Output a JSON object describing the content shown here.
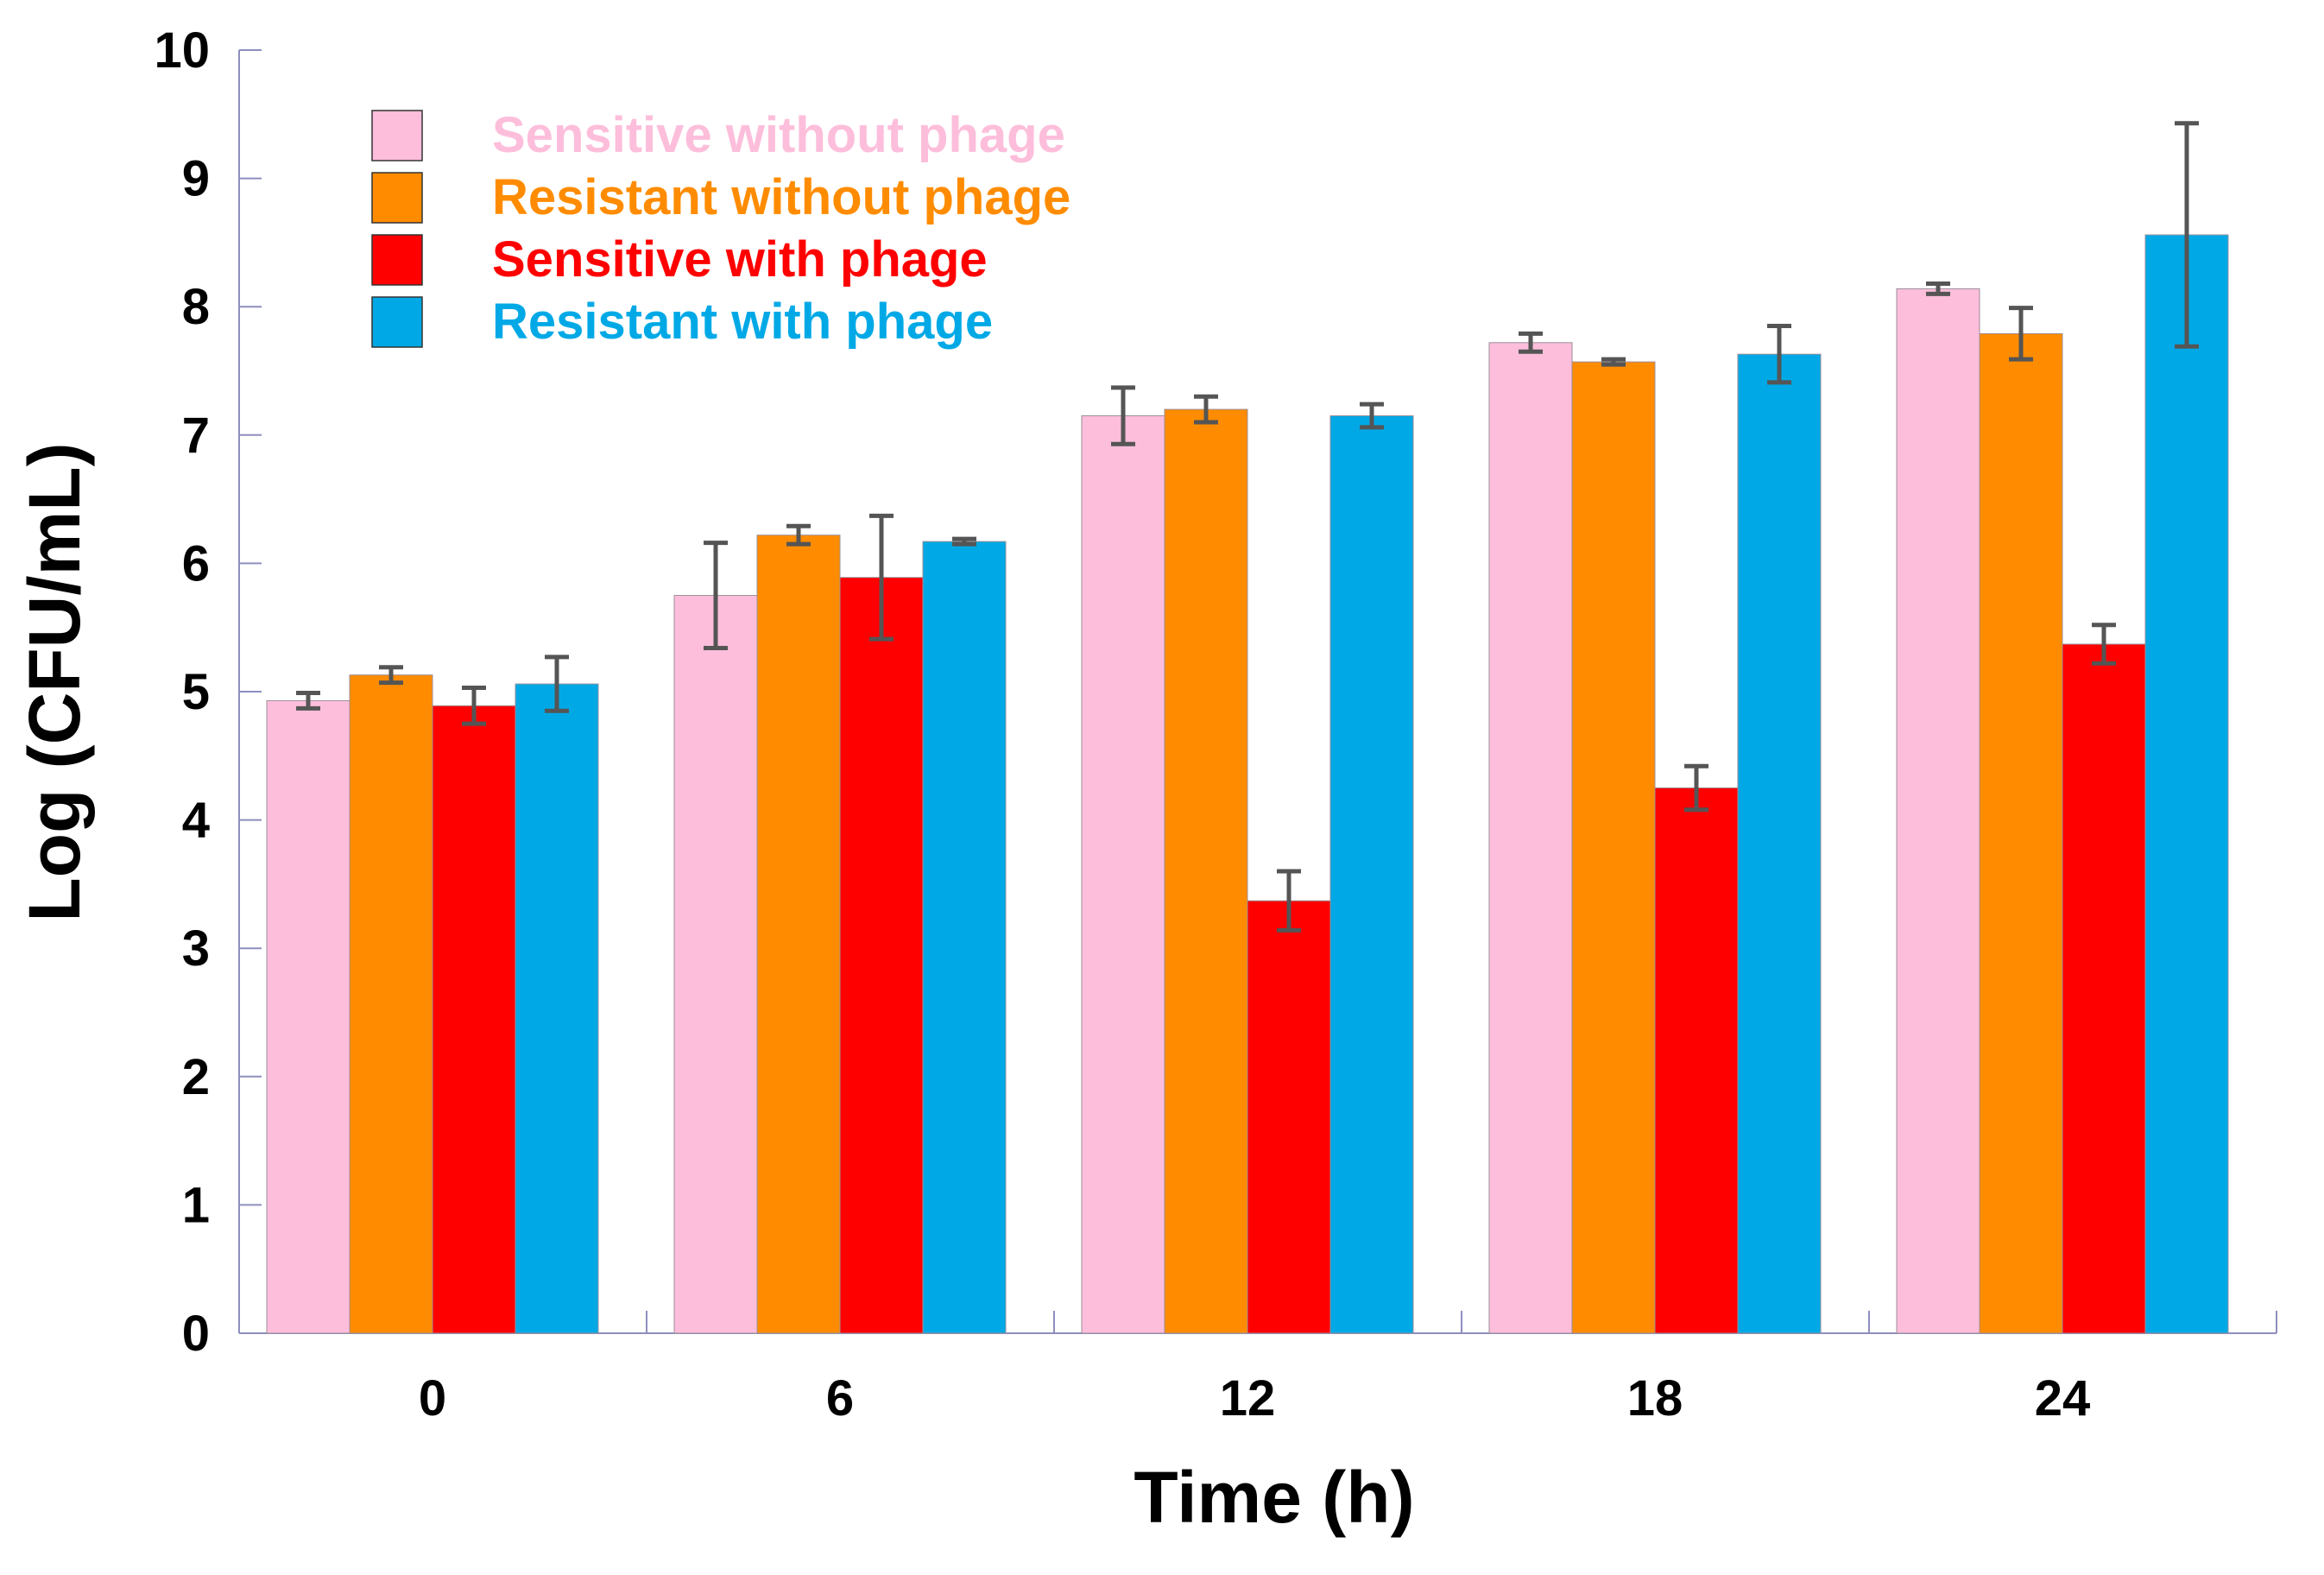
{
  "chart_data": {
    "type": "bar",
    "title": "",
    "xlabel": "Time (h)",
    "ylabel": "Log (CFU/mL)",
    "ylim": [
      0,
      10
    ],
    "yticks": [
      "0",
      "1",
      "2",
      "3",
      "4",
      "5",
      "6",
      "7",
      "8",
      "9",
      "10"
    ],
    "categories": [
      "0",
      "6",
      "12",
      "18",
      "24"
    ],
    "legend_position": "top-left",
    "series": [
      {
        "name": "Sensitive without phage",
        "color": "#FDBEDB",
        "values": [
          4.93,
          5.75,
          7.15,
          7.72,
          8.14
        ],
        "errors": [
          0.06,
          0.41,
          0.22,
          0.07,
          0.04
        ]
      },
      {
        "name": "Resistant without phage",
        "color": "#FF8C00",
        "values": [
          5.13,
          6.22,
          7.2,
          7.57,
          7.79
        ],
        "errors": [
          0.06,
          0.07,
          0.1,
          0.02,
          0.2
        ]
      },
      {
        "name": "Sensitive with phage",
        "color": "#FF0000",
        "values": [
          4.89,
          5.89,
          3.37,
          4.25,
          5.37
        ],
        "errors": [
          0.14,
          0.48,
          0.23,
          0.17,
          0.15
        ]
      },
      {
        "name": "Resistant with phage",
        "color": "#00A9E6",
        "values": [
          5.06,
          6.17,
          7.15,
          7.63,
          8.56
        ],
        "errors": [
          0.21,
          0.02,
          0.09,
          0.22,
          0.87
        ]
      }
    ]
  }
}
